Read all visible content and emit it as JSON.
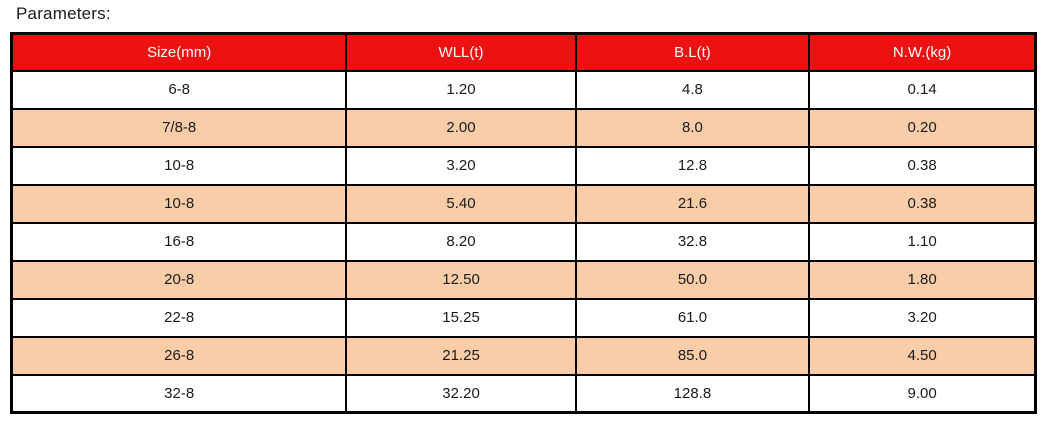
{
  "page": {
    "title": "Parameters:"
  },
  "colors": {
    "header_bg": "#ee1111",
    "header_text": "#ffffff",
    "row_bg": "#ffffff",
    "row_alt_bg": "#f9cda8",
    "border": "#000000",
    "text": "#1a1a1a"
  },
  "table": {
    "headers": [
      "Size(mm)",
      "WLL(t)",
      "B.L(t)",
      "N.W.(kg)"
    ],
    "rows": [
      [
        "6-8",
        "1.20",
        "4.8",
        "0.14"
      ],
      [
        "7/8-8",
        "2.00",
        "8.0",
        "0.20"
      ],
      [
        "10-8",
        "3.20",
        "12.8",
        "0.38"
      ],
      [
        "10-8",
        "5.40",
        "21.6",
        "0.38"
      ],
      [
        "16-8",
        "8.20",
        "32.8",
        "1.10"
      ],
      [
        "20-8",
        "12.50",
        "50.0",
        "1.80"
      ],
      [
        "22-8",
        "15.25",
        "61.0",
        "3.20"
      ],
      [
        "26-8",
        "21.25",
        "85.0",
        "4.50"
      ],
      [
        "32-8",
        "32.20",
        "128.8",
        "9.00"
      ]
    ]
  }
}
